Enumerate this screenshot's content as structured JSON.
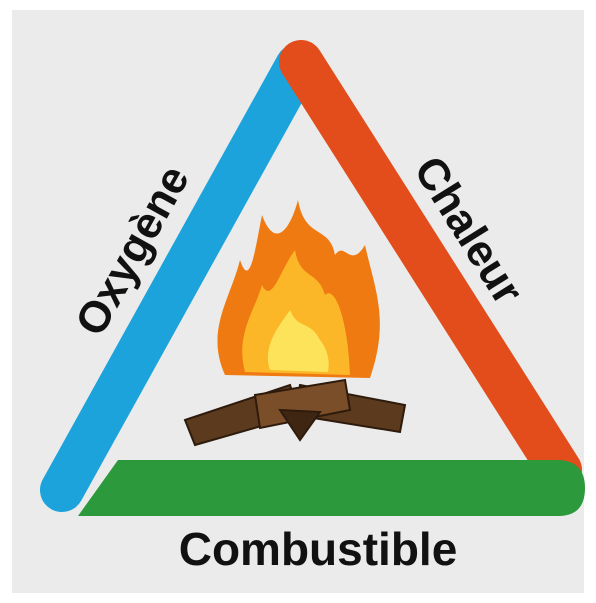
{
  "labels": {
    "oxygen": "Oxygène",
    "heat": "Chaleur",
    "fuel": "Combustible"
  }
}
